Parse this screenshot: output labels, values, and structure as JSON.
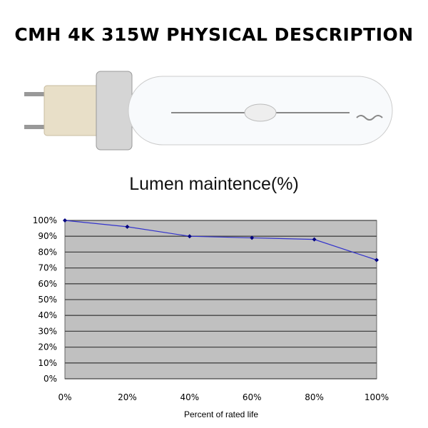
{
  "title": "CMH 4K 315W PHYSICAL DESCRIPTION",
  "chart_data": {
    "type": "line",
    "title": "Lumen maintence(%)",
    "xlabel": "Percent of rated life",
    "ylabel": "",
    "x": [
      0,
      20,
      40,
      60,
      80,
      100
    ],
    "x_tick_labels": [
      "0%",
      "20%",
      "40%",
      "60%",
      "80%",
      "100%"
    ],
    "y_tick_labels": [
      "0%",
      "10%",
      "20%",
      "30%",
      "40%",
      "50%",
      "60%",
      "70%",
      "80%",
      "90%",
      "100%"
    ],
    "series": [
      {
        "values": [
          100,
          96,
          90,
          89,
          88,
          75
        ]
      }
    ],
    "xlim": [
      0,
      100
    ],
    "ylim": [
      0,
      100
    ],
    "grid": true,
    "plot_background": "#c0c0c0",
    "line_color": "#3333cc",
    "marker_color": "#000080"
  }
}
